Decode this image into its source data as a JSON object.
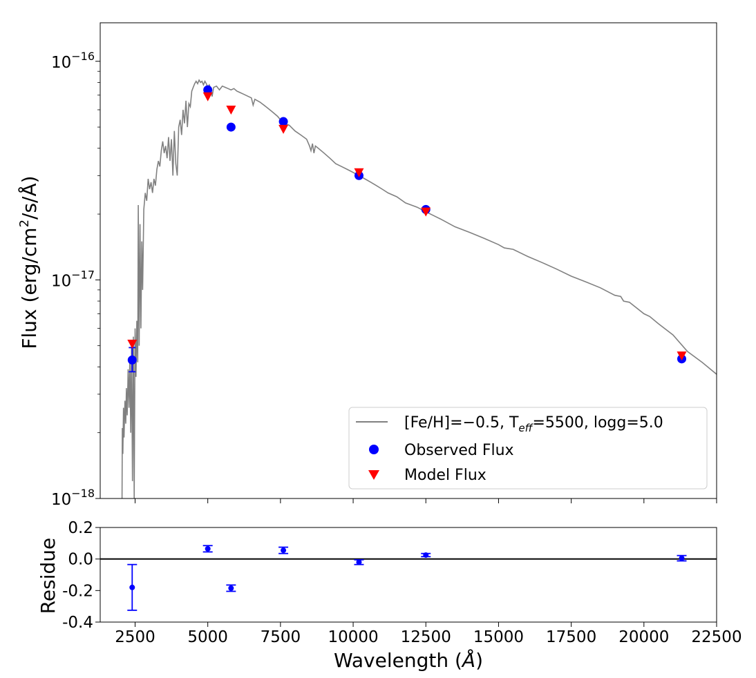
{
  "chart_data": [
    {
      "type": "line+scatter",
      "xlim": [
        1300,
        22500
      ],
      "ylim": [
        1e-18,
        1.5e-16
      ],
      "yscale": "log",
      "ylabel": "Flux (erg/cm²/s/Å)",
      "ylabel_parts": {
        "pre": "Flux (erg/cm",
        "sup": "2",
        "post": "/s/Å)"
      },
      "yticks": [
        {
          "value": 1e-16,
          "base": "10",
          "exp": "−16"
        },
        {
          "value": 1e-17,
          "base": "10",
          "exp": "−17"
        },
        {
          "value": 1e-18,
          "base": "10",
          "exp": "−18"
        }
      ],
      "legend": {
        "placement": "lower-right",
        "model_label": {
          "pre": "[Fe/H]=−0.5, T",
          "sub": "eff",
          "post": "=5500, logg=5.0"
        },
        "observed_label": "Observed Flux",
        "predicted_label": "Model Flux"
      },
      "series": [
        {
          "name": "[Fe/H]=−0.5, Teff=5500, logg=5.0",
          "kind": "line",
          "color": "#808080",
          "points": [
            [
              2050,
              1e-18
            ],
            [
              2060,
              2.1e-18
            ],
            [
              2080,
              1.6e-18
            ],
            [
              2100,
              2.6e-18
            ],
            [
              2120,
              1.9e-18
            ],
            [
              2150,
              2.8e-18
            ],
            [
              2180,
              2.2e-18
            ],
            [
              2200,
              3.2e-18
            ],
            [
              2230,
              2.4e-18
            ],
            [
              2260,
              3.9e-18
            ],
            [
              2290,
              2.6e-18
            ],
            [
              2320,
              4.4e-18
            ],
            [
              2350,
              2e-18
            ],
            [
              2380,
              4.9e-18
            ],
            [
              2410,
              1.2e-18
            ],
            [
              2440,
              5.5e-18
            ],
            [
              2470,
              1e-18
            ],
            [
              2500,
              6e-18
            ],
            [
              2530,
              3.6e-18
            ],
            [
              2560,
              6.5e-18
            ],
            [
              2590,
              4.2e-18
            ],
            [
              2610,
              2.2e-17
            ],
            [
              2640,
              5e-18
            ],
            [
              2670,
              1.8e-17
            ],
            [
              2700,
              6e-18
            ],
            [
              2730,
              1.5e-17
            ],
            [
              2760,
              9e-18
            ],
            [
              2800,
              2.1e-17
            ],
            [
              2850,
              2.5e-17
            ],
            [
              2900,
              2.3e-17
            ],
            [
              2950,
              2.9e-17
            ],
            [
              3000,
              2.6e-17
            ],
            [
              3050,
              2.8e-17
            ],
            [
              3100,
              2.5e-17
            ],
            [
              3150,
              2.9e-17
            ],
            [
              3200,
              2.7e-17
            ],
            [
              3250,
              3.2e-17
            ],
            [
              3300,
              3.5e-17
            ],
            [
              3350,
              3.3e-17
            ],
            [
              3400,
              3.9e-17
            ],
            [
              3450,
              4.3e-17
            ],
            [
              3500,
              3.8e-17
            ],
            [
              3550,
              4.1e-17
            ],
            [
              3600,
              3.6e-17
            ],
            [
              3650,
              4.5e-17
            ],
            [
              3700,
              3.5e-17
            ],
            [
              3750,
              4.4e-17
            ],
            [
              3800,
              3e-17
            ],
            [
              3850,
              4.8e-17
            ],
            [
              3900,
              3.4e-17
            ],
            [
              3950,
              3e-17
            ],
            [
              4000,
              5e-17
            ],
            [
              4050,
              5.4e-17
            ],
            [
              4100,
              4.6e-17
            ],
            [
              4150,
              6e-17
            ],
            [
              4200,
              5.2e-17
            ],
            [
              4250,
              6.6e-17
            ],
            [
              4300,
              5e-17
            ],
            [
              4350,
              6.4e-17
            ],
            [
              4400,
              6.2e-17
            ],
            [
              4450,
              7.3e-17
            ],
            [
              4500,
              7.6e-17
            ],
            [
              4550,
              7.9e-17
            ],
            [
              4600,
              8.1e-17
            ],
            [
              4650,
              7.9e-17
            ],
            [
              4700,
              8.2e-17
            ],
            [
              4750,
              8e-17
            ],
            [
              4800,
              8.1e-17
            ],
            [
              4850,
              7.8e-17
            ],
            [
              4900,
              8.1e-17
            ],
            [
              4950,
              7.9e-17
            ],
            [
              5000,
              7.6e-17
            ],
            [
              5050,
              7.8e-17
            ],
            [
              5100,
              7.5e-17
            ],
            [
              5150,
              6.9e-17
            ],
            [
              5200,
              7.6e-17
            ],
            [
              5300,
              7.7e-17
            ],
            [
              5400,
              7.4e-17
            ],
            [
              5500,
              7.7e-17
            ],
            [
              5600,
              7.6e-17
            ],
            [
              5700,
              7.5e-17
            ],
            [
              5800,
              7.4e-17
            ],
            [
              5900,
              7.5e-17
            ],
            [
              6000,
              7.3e-17
            ],
            [
              6100,
              7.2e-17
            ],
            [
              6200,
              7.1e-17
            ],
            [
              6300,
              7e-17
            ],
            [
              6400,
              6.9e-17
            ],
            [
              6500,
              6.8e-17
            ],
            [
              6560,
              6.3e-17
            ],
            [
              6620,
              6.7e-17
            ],
            [
              6800,
              6.5e-17
            ],
            [
              7000,
              6.2e-17
            ],
            [
              7200,
              5.9e-17
            ],
            [
              7400,
              5.6e-17
            ],
            [
              7600,
              5.2e-17
            ],
            [
              7800,
              5.1e-17
            ],
            [
              8000,
              4.8e-17
            ],
            [
              8200,
              4.6e-17
            ],
            [
              8400,
              4.4e-17
            ],
            [
              8500,
              4.1e-17
            ],
            [
              8550,
              3.9e-17
            ],
            [
              8600,
              4.2e-17
            ],
            [
              8650,
              3.8e-17
            ],
            [
              8700,
              4.1e-17
            ],
            [
              8800,
              4e-17
            ],
            [
              9000,
              3.8e-17
            ],
            [
              9200,
              3.6e-17
            ],
            [
              9400,
              3.4e-17
            ],
            [
              9600,
              3.3e-17
            ],
            [
              9800,
              3.2e-17
            ],
            [
              10000,
              3.1e-17
            ],
            [
              10200,
              3e-17
            ],
            [
              10400,
              2.9e-17
            ],
            [
              10600,
              2.8e-17
            ],
            [
              10800,
              2.7e-17
            ],
            [
              11000,
              2.6e-17
            ],
            [
              11200,
              2.5e-17
            ],
            [
              11500,
              2.4e-17
            ],
            [
              11800,
              2.25e-17
            ],
            [
              12000,
              2.2e-17
            ],
            [
              12200,
              2.15e-17
            ],
            [
              12500,
              2.05e-17
            ],
            [
              13000,
              1.9e-17
            ],
            [
              13500,
              1.75e-17
            ],
            [
              14000,
              1.65e-17
            ],
            [
              14500,
              1.55e-17
            ],
            [
              15000,
              1.45e-17
            ],
            [
              15200,
              1.4e-17
            ],
            [
              15500,
              1.38e-17
            ],
            [
              16000,
              1.28e-17
            ],
            [
              16500,
              1.2e-17
            ],
            [
              17000,
              1.12e-17
            ],
            [
              17500,
              1.04e-17
            ],
            [
              18000,
              9.8e-18
            ],
            [
              18500,
              9.2e-18
            ],
            [
              19000,
              8.5e-18
            ],
            [
              19200,
              8.4e-18
            ],
            [
              19300,
              8e-18
            ],
            [
              19500,
              7.9e-18
            ],
            [
              20000,
              7e-18
            ],
            [
              20200,
              6.8e-18
            ],
            [
              20500,
              6.3e-18
            ],
            [
              21000,
              5.6e-18
            ],
            [
              21500,
              4.7e-18
            ],
            [
              22000,
              4.2e-18
            ],
            [
              22500,
              3.7e-18
            ]
          ]
        },
        {
          "name": "Observed Flux",
          "kind": "scatter",
          "marker": "circle",
          "color": "#0000ff",
          "points": [
            {
              "x": 2400,
              "y": 4.3e-18,
              "ylo": 3.8e-18,
              "yhi": 4.9e-18
            },
            {
              "x": 5000,
              "y": 7.4e-17
            },
            {
              "x": 5800,
              "y": 5e-17
            },
            {
              "x": 7600,
              "y": 5.3e-17
            },
            {
              "x": 10200,
              "y": 3e-17
            },
            {
              "x": 12500,
              "y": 2.1e-17
            },
            {
              "x": 21300,
              "y": 4.35e-18
            }
          ]
        },
        {
          "name": "Model Flux",
          "kind": "scatter",
          "marker": "triangle-down",
          "color": "#ff0000",
          "points": [
            {
              "x": 2400,
              "y": 5.1e-18
            },
            {
              "x": 5000,
              "y": 6.9e-17
            },
            {
              "x": 5800,
              "y": 6e-17
            },
            {
              "x": 7600,
              "y": 4.9e-17
            },
            {
              "x": 10200,
              "y": 3.1e-17
            },
            {
              "x": 12500,
              "y": 2.05e-17
            },
            {
              "x": 21300,
              "y": 4.5e-18
            }
          ]
        }
      ]
    },
    {
      "type": "errorbar",
      "xlim": [
        1300,
        22500
      ],
      "ylim": [
        -0.4,
        0.2
      ],
      "ylabel": "Residue",
      "xlabel": "Wavelength (Å)",
      "xlabel_parts": {
        "pre": "Wavelength (",
        "it": "Å",
        "post": ")"
      },
      "yticks": [
        {
          "value": 0.2,
          "label": "0.2"
        },
        {
          "value": 0.0,
          "label": "0.0"
        },
        {
          "value": -0.2,
          "label": "-0.2"
        },
        {
          "value": -0.4,
          "label": "-0.4"
        }
      ],
      "xticks": [
        {
          "value": 2500,
          "label": "2500"
        },
        {
          "value": 5000,
          "label": "5000"
        },
        {
          "value": 7500,
          "label": "7500"
        },
        {
          "value": 10000,
          "label": "10000"
        },
        {
          "value": 12500,
          "label": "12500"
        },
        {
          "value": 15000,
          "label": "15000"
        },
        {
          "value": 17500,
          "label": "17500"
        },
        {
          "value": 20000,
          "label": "20000"
        },
        {
          "value": 22500,
          "label": "22500"
        }
      ],
      "reference_line": 0.0,
      "color": "#0000ff",
      "points": [
        {
          "x": 2400,
          "y": -0.18,
          "ylo": -0.325,
          "yhi": -0.035
        },
        {
          "x": 5000,
          "y": 0.065,
          "ylo": 0.045,
          "yhi": 0.085
        },
        {
          "x": 5800,
          "y": -0.185,
          "ylo": -0.205,
          "yhi": -0.165
        },
        {
          "x": 7600,
          "y": 0.055,
          "ylo": 0.035,
          "yhi": 0.075
        },
        {
          "x": 10200,
          "y": -0.02,
          "ylo": -0.035,
          "yhi": -0.005
        },
        {
          "x": 12500,
          "y": 0.025,
          "ylo": 0.015,
          "yhi": 0.035
        },
        {
          "x": 21300,
          "y": 0.005,
          "ylo": -0.012,
          "yhi": 0.022
        }
      ]
    }
  ]
}
